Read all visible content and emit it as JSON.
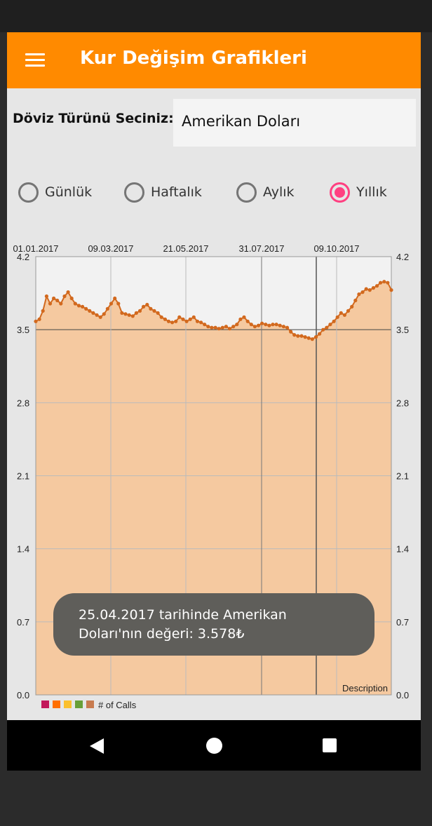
{
  "app": {
    "title": "Kur Değişim Grafikleri"
  },
  "currency_selector": {
    "label": "Döviz Türünü Seciniz:",
    "selected": "Amerikan Doları"
  },
  "period_options": [
    {
      "label": "Günlük",
      "checked": false
    },
    {
      "label": "Haftalık",
      "checked": false
    },
    {
      "label": "Aylık",
      "checked": false
    },
    {
      "label": "Yıllık",
      "checked": true
    }
  ],
  "colors": {
    "accent": "#ff8a00",
    "radio_checked": "#ff4081",
    "line": "#d2691e",
    "fill": "#f5c9a0"
  },
  "chart_data": {
    "type": "area",
    "x_tick_labels": [
      "01.01.2017",
      "09.03.2017",
      "21.05.2017",
      "31.07.2017",
      "09.10.2017"
    ],
    "y_ticks": [
      "0.0",
      "0.7",
      "1.4",
      "2.1",
      "2.8",
      "3.5",
      "4.2"
    ],
    "ylim": [
      0,
      4.2
    ],
    "description": "Description",
    "legend": {
      "label": "# of Calls",
      "colors": [
        "#c2185b",
        "#ff6f00",
        "#fbc02d",
        "#689f38",
        "#c87b4f"
      ]
    },
    "highlighted_point": {
      "date": "25.04.2017",
      "value": 3.578
    },
    "values": [
      3.58,
      3.6,
      3.68,
      3.82,
      3.75,
      3.8,
      3.78,
      3.75,
      3.82,
      3.86,
      3.8,
      3.75,
      3.73,
      3.72,
      3.7,
      3.68,
      3.66,
      3.64,
      3.62,
      3.65,
      3.7,
      3.75,
      3.8,
      3.75,
      3.66,
      3.65,
      3.64,
      3.63,
      3.66,
      3.68,
      3.72,
      3.74,
      3.7,
      3.68,
      3.66,
      3.62,
      3.6,
      3.58,
      3.57,
      3.58,
      3.62,
      3.6,
      3.58,
      3.6,
      3.62,
      3.58,
      3.57,
      3.55,
      3.53,
      3.52,
      3.52,
      3.51,
      3.52,
      3.53,
      3.51,
      3.53,
      3.55,
      3.6,
      3.62,
      3.58,
      3.55,
      3.53,
      3.54,
      3.56,
      3.55,
      3.54,
      3.55,
      3.55,
      3.54,
      3.53,
      3.52,
      3.48,
      3.45,
      3.44,
      3.44,
      3.43,
      3.42,
      3.41,
      3.43,
      3.46,
      3.5,
      3.52,
      3.55,
      3.58,
      3.62,
      3.66,
      3.64,
      3.68,
      3.72,
      3.78,
      3.84,
      3.86,
      3.89,
      3.88,
      3.9,
      3.92,
      3.95,
      3.96,
      3.95,
      3.88
    ]
  },
  "toast": {
    "text": "25.04.2017 tarihinde Amerikan Doları'nın değeri: 3.578₺"
  },
  "nav": {
    "back": "back-icon",
    "home": "home-icon",
    "recent": "recent-apps-icon"
  }
}
